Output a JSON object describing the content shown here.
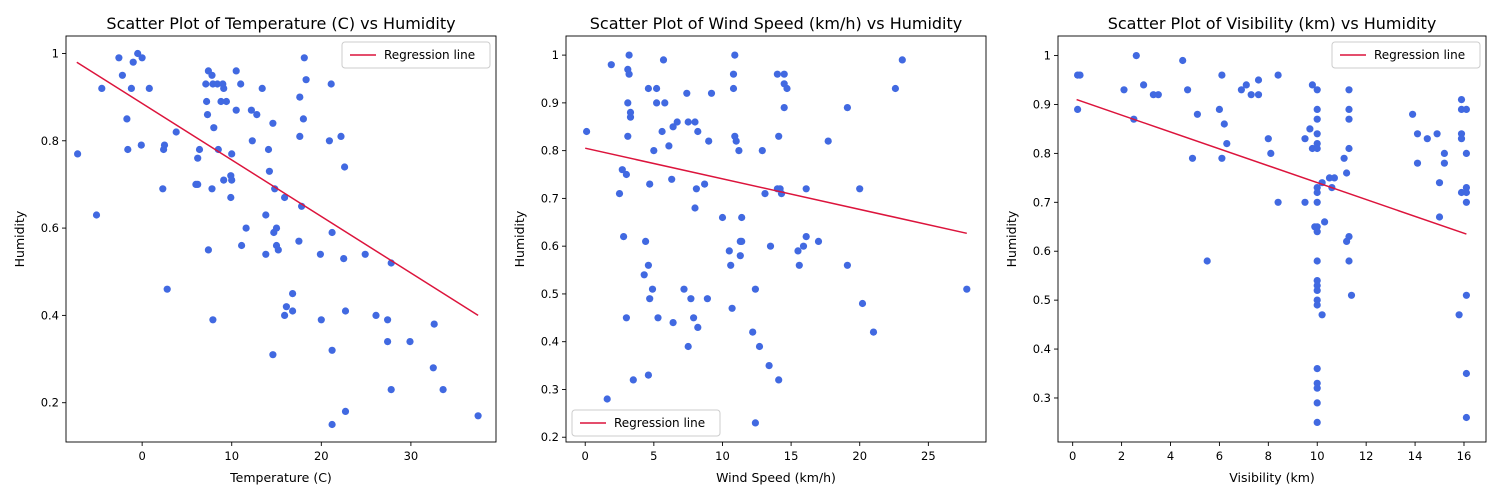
{
  "chart_data": [
    {
      "type": "scatter",
      "title": "Scatter Plot of Temperature (C) vs Humidity",
      "xlabel": "Temperature (C)",
      "ylabel": "Humidity",
      "xlim": [
        -8.5,
        39.5
      ],
      "ylim": [
        0.11,
        1.04
      ],
      "xticks": [
        0,
        10,
        20,
        30
      ],
      "yticks": [
        0.2,
        0.4,
        0.6,
        0.8,
        1.0
      ],
      "grid": false,
      "legend": {
        "position": "top-right",
        "entries": [
          "Regression line"
        ]
      },
      "point_color": "#4169e1",
      "regression_color": "#dc143c",
      "regression": {
        "x": [
          -7.3,
          37.5
        ],
        "y": [
          0.98,
          0.4
        ]
      },
      "points": [
        [
          -7.2,
          0.77
        ],
        [
          -5.1,
          0.63
        ],
        [
          -4.5,
          0.92
        ],
        [
          -2.6,
          0.99
        ],
        [
          -2.2,
          0.95
        ],
        [
          -1.7,
          0.85
        ],
        [
          -1.6,
          0.78
        ],
        [
          -1.2,
          0.92
        ],
        [
          -1.0,
          0.98
        ],
        [
          -0.5,
          1.0
        ],
        [
          0.0,
          0.99
        ],
        [
          -0.1,
          0.79
        ],
        [
          0.8,
          0.92
        ],
        [
          2.3,
          0.69
        ],
        [
          2.4,
          0.78
        ],
        [
          2.5,
          0.79
        ],
        [
          2.8,
          0.46
        ],
        [
          3.8,
          0.82
        ],
        [
          6.0,
          0.7
        ],
        [
          6.2,
          0.7
        ],
        [
          6.2,
          0.76
        ],
        [
          6.4,
          0.78
        ],
        [
          7.1,
          0.93
        ],
        [
          7.2,
          0.89
        ],
        [
          7.3,
          0.86
        ],
        [
          7.4,
          0.96
        ],
        [
          7.4,
          0.55
        ],
        [
          7.8,
          0.69
        ],
        [
          7.9,
          0.93
        ],
        [
          7.8,
          0.95
        ],
        [
          8.0,
          0.83
        ],
        [
          7.9,
          0.39
        ],
        [
          8.5,
          0.78
        ],
        [
          8.4,
          0.93
        ],
        [
          8.8,
          0.89
        ],
        [
          9.1,
          0.92
        ],
        [
          9.0,
          0.93
        ],
        [
          9.1,
          0.71
        ],
        [
          9.4,
          0.89
        ],
        [
          9.9,
          0.72
        ],
        [
          9.9,
          0.67
        ],
        [
          10.0,
          0.71
        ],
        [
          10.0,
          0.77
        ],
        [
          10.5,
          0.96
        ],
        [
          10.5,
          0.87
        ],
        [
          11.0,
          0.93
        ],
        [
          11.1,
          0.56
        ],
        [
          11.6,
          0.6
        ],
        [
          12.2,
          0.87
        ],
        [
          12.3,
          0.8
        ],
        [
          12.8,
          0.86
        ],
        [
          13.4,
          0.92
        ],
        [
          13.8,
          0.63
        ],
        [
          13.8,
          0.54
        ],
        [
          14.1,
          0.78
        ],
        [
          14.2,
          0.73
        ],
        [
          14.6,
          0.84
        ],
        [
          14.6,
          0.31
        ],
        [
          14.7,
          0.59
        ],
        [
          14.8,
          0.69
        ],
        [
          15.0,
          0.6
        ],
        [
          15.2,
          0.55
        ],
        [
          15.0,
          0.56
        ],
        [
          15.9,
          0.4
        ],
        [
          15.9,
          0.67
        ],
        [
          16.1,
          0.42
        ],
        [
          16.8,
          0.41
        ],
        [
          16.8,
          0.45
        ],
        [
          17.5,
          0.57
        ],
        [
          17.6,
          0.9
        ],
        [
          17.6,
          0.81
        ],
        [
          17.8,
          0.65
        ],
        [
          18.0,
          0.85
        ],
        [
          18.1,
          0.99
        ],
        [
          18.3,
          0.94
        ],
        [
          19.9,
          0.54
        ],
        [
          20.0,
          0.39
        ],
        [
          20.9,
          0.8
        ],
        [
          21.1,
          0.93
        ],
        [
          21.2,
          0.59
        ],
        [
          21.2,
          0.32
        ],
        [
          21.2,
          0.15
        ],
        [
          22.2,
          0.81
        ],
        [
          22.5,
          0.53
        ],
        [
          22.6,
          0.74
        ],
        [
          22.7,
          0.41
        ],
        [
          22.7,
          0.18
        ],
        [
          24.9,
          0.54
        ],
        [
          26.1,
          0.4
        ],
        [
          27.4,
          0.39
        ],
        [
          27.4,
          0.34
        ],
        [
          27.8,
          0.52
        ],
        [
          27.8,
          0.23
        ],
        [
          29.9,
          0.34
        ],
        [
          32.6,
          0.38
        ],
        [
          32.5,
          0.28
        ],
        [
          33.6,
          0.23
        ],
        [
          37.5,
          0.17
        ]
      ]
    },
    {
      "type": "scatter",
      "title": "Scatter Plot of Wind Speed (km/h) vs Humidity",
      "xlabel": "Wind Speed (km/h)",
      "ylabel": "Humidity",
      "xlim": [
        -1.4,
        29.2
      ],
      "ylim": [
        0.19,
        1.04
      ],
      "xticks": [
        0,
        5,
        10,
        15,
        20,
        25
      ],
      "yticks": [
        0.2,
        0.3,
        0.4,
        0.5,
        0.6,
        0.7,
        0.8,
        0.9,
        1.0
      ],
      "grid": false,
      "legend": {
        "position": "bottom-left",
        "entries": [
          "Regression line"
        ]
      },
      "point_color": "#4169e1",
      "regression_color": "#dc143c",
      "regression": {
        "x": [
          0,
          27.8
        ],
        "y": [
          0.805,
          0.627
        ]
      },
      "points": [
        [
          0.1,
          0.84
        ],
        [
          1.6,
          0.28
        ],
        [
          1.9,
          0.98
        ],
        [
          2.5,
          0.71
        ],
        [
          2.8,
          0.62
        ],
        [
          2.7,
          0.76
        ],
        [
          3.0,
          0.75
        ],
        [
          3.1,
          0.9
        ],
        [
          3.0,
          0.45
        ],
        [
          3.1,
          0.97
        ],
        [
          3.1,
          0.83
        ],
        [
          3.2,
          1.0
        ],
        [
          3.2,
          0.96
        ],
        [
          3.3,
          0.87
        ],
        [
          3.3,
          0.88
        ],
        [
          3.5,
          0.32
        ],
        [
          4.3,
          0.54
        ],
        [
          4.4,
          0.61
        ],
        [
          4.6,
          0.93
        ],
        [
          4.6,
          0.56
        ],
        [
          4.6,
          0.33
        ],
        [
          4.7,
          0.73
        ],
        [
          4.7,
          0.49
        ],
        [
          4.9,
          0.51
        ],
        [
          5.0,
          0.8
        ],
        [
          5.2,
          0.9
        ],
        [
          5.2,
          0.93
        ],
        [
          5.3,
          0.45
        ],
        [
          5.6,
          0.84
        ],
        [
          5.7,
          0.99
        ],
        [
          5.8,
          0.9
        ],
        [
          6.1,
          0.81
        ],
        [
          6.3,
          0.74
        ],
        [
          6.4,
          0.85
        ],
        [
          6.4,
          0.44
        ],
        [
          6.7,
          0.86
        ],
        [
          7.2,
          0.51
        ],
        [
          7.4,
          0.92
        ],
        [
          7.5,
          0.86
        ],
        [
          7.5,
          0.39
        ],
        [
          7.7,
          0.49
        ],
        [
          7.9,
          0.45
        ],
        [
          8.0,
          0.68
        ],
        [
          8.0,
          0.86
        ],
        [
          8.1,
          0.72
        ],
        [
          8.2,
          0.43
        ],
        [
          8.2,
          0.84
        ],
        [
          8.7,
          0.73
        ],
        [
          9.0,
          0.82
        ],
        [
          8.9,
          0.49
        ],
        [
          9.2,
          0.92
        ],
        [
          10.0,
          0.66
        ],
        [
          10.5,
          0.59
        ],
        [
          10.6,
          0.56
        ],
        [
          10.7,
          0.47
        ],
        [
          10.8,
          0.96
        ],
        [
          10.8,
          0.93
        ],
        [
          10.9,
          0.83
        ],
        [
          10.9,
          1.0
        ],
        [
          11.0,
          0.82
        ],
        [
          11.2,
          0.8
        ],
        [
          11.3,
          0.61
        ],
        [
          11.3,
          0.58
        ],
        [
          11.4,
          0.66
        ],
        [
          11.4,
          0.61
        ],
        [
          12.2,
          0.42
        ],
        [
          12.4,
          0.23
        ],
        [
          12.4,
          0.51
        ],
        [
          12.7,
          0.39
        ],
        [
          12.9,
          0.8
        ],
        [
          13.1,
          0.71
        ],
        [
          13.4,
          0.35
        ],
        [
          13.5,
          0.6
        ],
        [
          14.0,
          0.96
        ],
        [
          14.1,
          0.83
        ],
        [
          14.0,
          0.72
        ],
        [
          14.1,
          0.32
        ],
        [
          14.2,
          0.72
        ],
        [
          14.3,
          0.71
        ],
        [
          14.5,
          0.96
        ],
        [
          14.5,
          0.89
        ],
        [
          14.5,
          0.94
        ],
        [
          14.7,
          0.93
        ],
        [
          15.5,
          0.59
        ],
        [
          15.6,
          0.56
        ],
        [
          15.9,
          0.6
        ],
        [
          16.1,
          0.72
        ],
        [
          16.1,
          0.62
        ],
        [
          17.0,
          0.61
        ],
        [
          17.7,
          0.82
        ],
        [
          19.1,
          0.89
        ],
        [
          19.1,
          0.56
        ],
        [
          20.0,
          0.72
        ],
        [
          20.2,
          0.48
        ],
        [
          21.0,
          0.42
        ],
        [
          22.6,
          0.93
        ],
        [
          23.1,
          0.99
        ],
        [
          27.8,
          0.51
        ]
      ]
    },
    {
      "type": "scatter",
      "title": "Scatter Plot of Visibility (km) vs Humidity",
      "xlabel": "Visibility (km)",
      "ylabel": "Humidity",
      "xlim": [
        -0.6,
        16.9
      ],
      "ylim": [
        0.21,
        1.04
      ],
      "xticks": [
        0,
        2,
        4,
        6,
        8,
        10,
        12,
        14,
        16
      ],
      "yticks": [
        0.3,
        0.4,
        0.5,
        0.6,
        0.7,
        0.8,
        0.9,
        1.0
      ],
      "grid": false,
      "legend": {
        "position": "top-right",
        "entries": [
          "Regression line"
        ]
      },
      "point_color": "#4169e1",
      "regression_color": "#dc143c",
      "regression": {
        "x": [
          0.16,
          16.1
        ],
        "y": [
          0.91,
          0.635
        ]
      },
      "points": [
        [
          0.2,
          0.96
        ],
        [
          0.2,
          0.89
        ],
        [
          0.3,
          0.96
        ],
        [
          2.1,
          0.93
        ],
        [
          2.5,
          0.87
        ],
        [
          2.6,
          1.0
        ],
        [
          2.9,
          0.94
        ],
        [
          3.3,
          0.92
        ],
        [
          3.5,
          0.92
        ],
        [
          4.5,
          0.99
        ],
        [
          4.7,
          0.93
        ],
        [
          4.9,
          0.79
        ],
        [
          5.1,
          0.88
        ],
        [
          5.5,
          0.58
        ],
        [
          6.0,
          0.89
        ],
        [
          6.1,
          0.96
        ],
        [
          6.1,
          0.79
        ],
        [
          6.2,
          0.86
        ],
        [
          6.3,
          0.82
        ],
        [
          6.9,
          0.93
        ],
        [
          7.1,
          0.94
        ],
        [
          7.3,
          0.92
        ],
        [
          7.6,
          0.95
        ],
        [
          7.6,
          0.92
        ],
        [
          8.0,
          0.83
        ],
        [
          8.1,
          0.8
        ],
        [
          8.4,
          0.96
        ],
        [
          8.4,
          0.7
        ],
        [
          9.5,
          0.83
        ],
        [
          9.5,
          0.7
        ],
        [
          9.7,
          0.85
        ],
        [
          9.8,
          0.81
        ],
        [
          9.8,
          0.94
        ],
        [
          9.9,
          0.65
        ],
        [
          10.0,
          0.93
        ],
        [
          10.0,
          0.89
        ],
        [
          10.0,
          0.87
        ],
        [
          10.0,
          0.84
        ],
        [
          10.0,
          0.82
        ],
        [
          10.0,
          0.81
        ],
        [
          10.0,
          0.73
        ],
        [
          10.0,
          0.72
        ],
        [
          10.0,
          0.7
        ],
        [
          10.0,
          0.65
        ],
        [
          10.0,
          0.64
        ],
        [
          10.0,
          0.58
        ],
        [
          10.0,
          0.54
        ],
        [
          10.0,
          0.53
        ],
        [
          10.0,
          0.52
        ],
        [
          10.0,
          0.5
        ],
        [
          10.0,
          0.49
        ],
        [
          10.0,
          0.36
        ],
        [
          10.0,
          0.33
        ],
        [
          10.0,
          0.32
        ],
        [
          10.0,
          0.29
        ],
        [
          10.0,
          0.25
        ],
        [
          10.2,
          0.74
        ],
        [
          10.2,
          0.47
        ],
        [
          10.3,
          0.66
        ],
        [
          10.5,
          0.75
        ],
        [
          10.6,
          0.73
        ],
        [
          10.7,
          0.75
        ],
        [
          11.1,
          0.79
        ],
        [
          11.2,
          0.76
        ],
        [
          11.2,
          0.62
        ],
        [
          11.3,
          0.93
        ],
        [
          11.3,
          0.89
        ],
        [
          11.3,
          0.87
        ],
        [
          11.3,
          0.81
        ],
        [
          11.3,
          0.63
        ],
        [
          11.3,
          0.58
        ],
        [
          11.4,
          0.51
        ],
        [
          13.9,
          0.88
        ],
        [
          14.1,
          0.84
        ],
        [
          14.1,
          0.78
        ],
        [
          14.5,
          0.83
        ],
        [
          14.9,
          0.84
        ],
        [
          15.0,
          0.74
        ],
        [
          15.0,
          0.67
        ],
        [
          15.2,
          0.8
        ],
        [
          15.2,
          0.78
        ],
        [
          15.8,
          0.47
        ],
        [
          15.9,
          0.91
        ],
        [
          15.9,
          0.89
        ],
        [
          15.9,
          0.84
        ],
        [
          15.9,
          0.83
        ],
        [
          15.9,
          0.72
        ],
        [
          16.1,
          0.89
        ],
        [
          16.1,
          0.8
        ],
        [
          16.1,
          0.73
        ],
        [
          16.1,
          0.72
        ],
        [
          16.1,
          0.7
        ],
        [
          16.1,
          0.51
        ],
        [
          16.1,
          0.35
        ],
        [
          16.1,
          0.26
        ]
      ]
    }
  ]
}
